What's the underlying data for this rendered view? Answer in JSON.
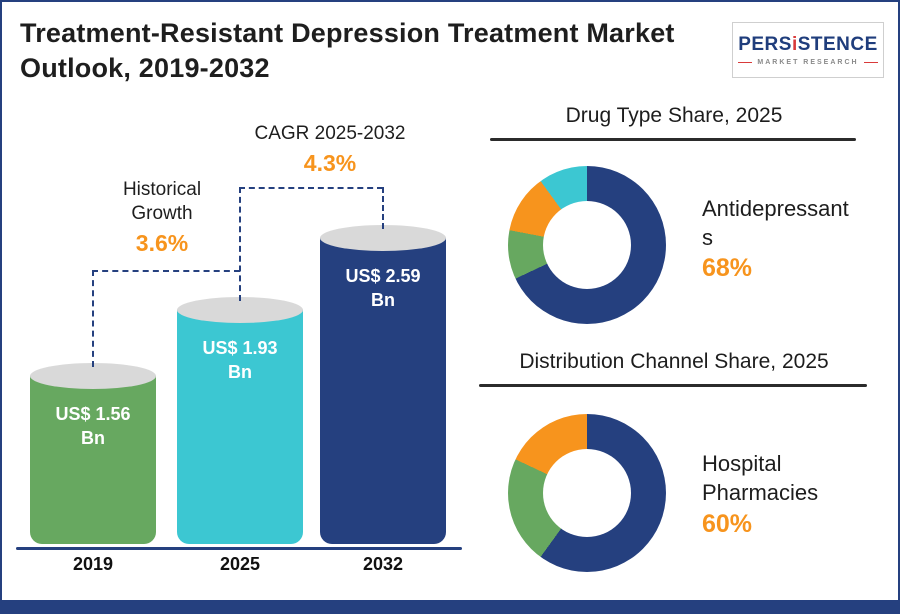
{
  "title": "Treatment-Resistant Depression Treatment Market Outlook, 2019-2032",
  "logo": {
    "pre": "PERS",
    "accent": "i",
    "post": "STENCE",
    "subtitle": "MARKET RESEARCH"
  },
  "colors": {
    "navy": "#25407f",
    "green": "#67a860",
    "cyan": "#3cc7d2",
    "orange": "#f7941d",
    "cylinder_top": "#d9d9d9"
  },
  "chart_data": [
    {
      "type": "bar",
      "title": "Treatment-Resistant Depression Treatment Market Outlook, 2019-2032",
      "categories": [
        "2019",
        "2025",
        "2032"
      ],
      "values": [
        1.56,
        1.93,
        2.59
      ],
      "unit": "US$ Bn",
      "bar_labels": [
        "US$ 1.56 Bn",
        "US$ 1.93 Bn",
        "US$ 2.59 Bn"
      ],
      "bar_colors": [
        "#67a860",
        "#3cc7d2",
        "#25407f"
      ],
      "annotations": [
        {
          "label": "Historical Growth",
          "value": "3.6%",
          "span": [
            "2019",
            "2025"
          ]
        },
        {
          "label": "CAGR 2025-2032",
          "value": "4.3%",
          "span": [
            "2025",
            "2032"
          ]
        }
      ],
      "grid": false,
      "legend": "none"
    },
    {
      "type": "pie",
      "donut": true,
      "title": "Drug Type Share, 2025",
      "highlight": {
        "label": "Antidepressants",
        "value": "68%"
      },
      "segments": [
        {
          "name": "Antidepressants",
          "value": 68,
          "color": "#25407f"
        },
        {
          "name": "unlabeled-green",
          "value": 10,
          "color": "#67a860"
        },
        {
          "name": "unlabeled-orange",
          "value": 12,
          "color": "#f7941d"
        },
        {
          "name": "unlabeled-cyan",
          "value": 10,
          "color": "#3cc7d2"
        }
      ],
      "legend": "none"
    },
    {
      "type": "pie",
      "donut": true,
      "title": "Distribution Channel Share, 2025",
      "highlight": {
        "label": "Hospital Pharmacies",
        "value": "60%"
      },
      "segments": [
        {
          "name": "Hospital Pharmacies",
          "value": 60,
          "color": "#25407f"
        },
        {
          "name": "unlabeled-green",
          "value": 22,
          "color": "#67a860"
        },
        {
          "name": "unlabeled-orange",
          "value": 18,
          "color": "#f7941d"
        }
      ],
      "legend": "none"
    }
  ]
}
